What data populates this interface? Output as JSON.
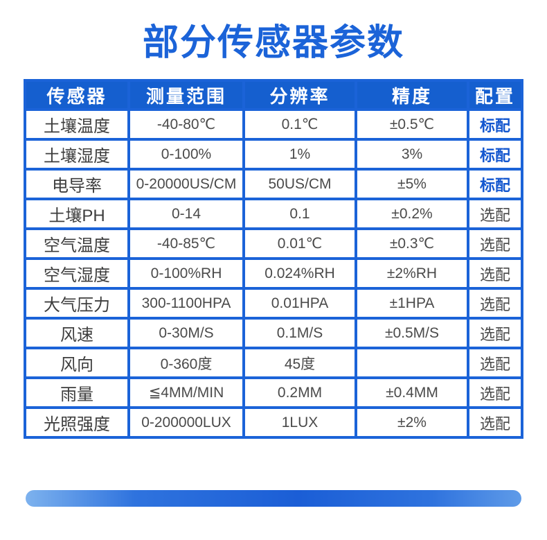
{
  "title": "部分传感器参数",
  "table": {
    "headers": [
      "传感器",
      "测量范围",
      "分辨率",
      "精度",
      "配置"
    ],
    "rows": [
      {
        "cells": [
          "土壤温度",
          "-40-80℃",
          "0.1℃",
          "±0.5℃",
          "标配"
        ],
        "standard": true
      },
      {
        "cells": [
          "土壤湿度",
          "0-100%",
          "1%",
          "3%",
          "标配"
        ],
        "standard": true
      },
      {
        "cells": [
          "电导率",
          "0-20000US/CM",
          "50US/CM",
          "±5%",
          "标配"
        ],
        "standard": true
      },
      {
        "cells": [
          "土壤PH",
          "0-14",
          "0.1",
          "±0.2%",
          "选配"
        ],
        "standard": false
      },
      {
        "cells": [
          "空气温度",
          "-40-85℃",
          "0.01℃",
          "±0.3℃",
          "选配"
        ],
        "standard": false
      },
      {
        "cells": [
          "空气湿度",
          "0-100%RH",
          "0.024%RH",
          "±2%RH",
          "选配"
        ],
        "standard": false
      },
      {
        "cells": [
          "大气压力",
          "300-1100HPA",
          "0.01HPA",
          "±1HPA",
          "选配"
        ],
        "standard": false
      },
      {
        "cells": [
          "风速",
          "0-30M/S",
          "0.1M/S",
          "±0.5M/S",
          "选配"
        ],
        "standard": false
      },
      {
        "cells": [
          "风向",
          "0-360度",
          "45度",
          "",
          "选配"
        ],
        "standard": false
      },
      {
        "cells": [
          "雨量",
          "≦4MM/MIN",
          "0.2MM",
          "±0.4MM",
          "选配"
        ],
        "standard": false
      },
      {
        "cells": [
          "光照强度",
          "0-200000LUX",
          "1LUX",
          "±2%",
          "选配"
        ],
        "standard": false
      }
    ]
  },
  "colors": {
    "title_blue": "#1b63d8",
    "header_bg": "#155fcf",
    "border_blue": "#1b63d8",
    "standard_text_blue": "#1457cf",
    "body_text": "#4a4a4a",
    "background": "#ffffff"
  }
}
